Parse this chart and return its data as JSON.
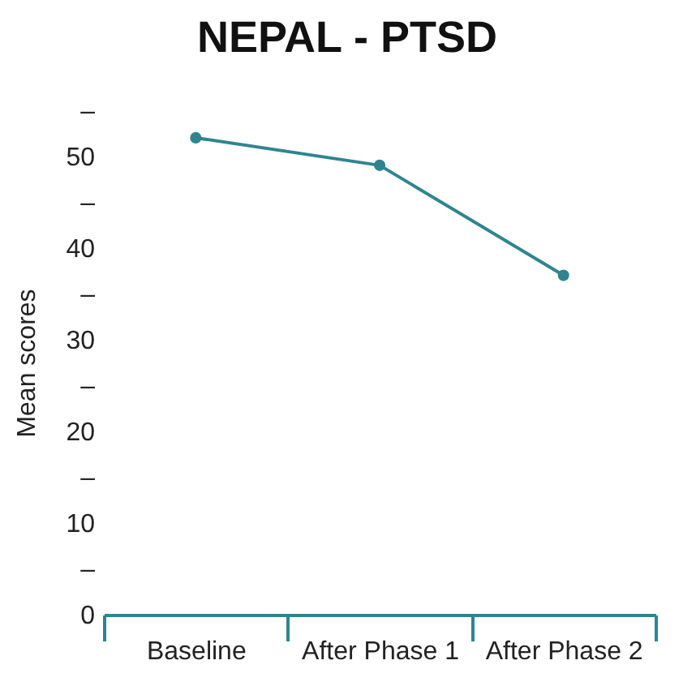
{
  "chart_data": {
    "type": "line",
    "title": "NEPAL - PTSD",
    "ylabel": "Mean scores",
    "categories": [
      "Baseline",
      "After Phase 1",
      "After Phase 2"
    ],
    "series": [
      {
        "color": "#2e8591",
        "values": [
          52,
          49,
          37
        ]
      }
    ],
    "ylim": [
      0,
      55
    ],
    "yticks": [
      0,
      {
        "value": 5,
        "label": "–"
      },
      10,
      {
        "value": 15,
        "label": "–"
      },
      20,
      {
        "value": 25,
        "label": "–"
      },
      30,
      {
        "value": 35,
        "label": "–"
      },
      40,
      {
        "value": 45,
        "label": "–"
      },
      50,
      {
        "value": 55,
        "label": "–"
      }
    ],
    "grid": false,
    "marker": "circle",
    "legend": false
  }
}
